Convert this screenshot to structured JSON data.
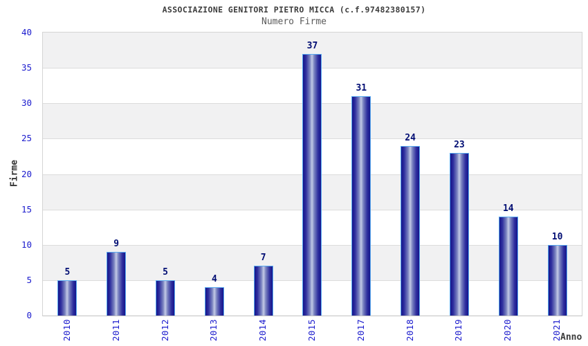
{
  "header": {
    "title": "ASSOCIAZIONE GENITORI PIETRO MICCA (c.f.97482380157)",
    "subtitle": "Numero Firme"
  },
  "chart_data": {
    "type": "bar",
    "title": "ASSOCIAZIONE GENITORI PIETRO MICCA (c.f.97482380157)",
    "subtitle": "Numero Firme",
    "xlabel": "Anno",
    "ylabel": "Firme",
    "categories": [
      "2010",
      "2011",
      "2012",
      "2013",
      "2014",
      "2015",
      "2017",
      "2018",
      "2019",
      "2020",
      "2021"
    ],
    "values": [
      5,
      9,
      5,
      4,
      7,
      37,
      31,
      24,
      23,
      14,
      10
    ],
    "ylim": [
      0,
      40
    ],
    "yticks": [
      0,
      5,
      10,
      15,
      20,
      25,
      30,
      35,
      40
    ],
    "grid": "horizontal-bands-alternating",
    "legend_position": "none",
    "bar_value_labels": true
  },
  "colors": {
    "bar_edge": "#15158b",
    "bar_center": "#c3cae6",
    "bar_border": "#58aaf0",
    "value_label": "#000d73",
    "tick_label": "#1a1acd",
    "axis_title": "#3c3c3c",
    "chart_title": "#3c3c3c",
    "chart_subtitle": "#5a5a5a",
    "band_gray": "#f1f1f2",
    "band_white": "#ffffff",
    "gridline": "#dcdcdc",
    "plot_border": "#d4d4d4",
    "background": "#ffffff"
  }
}
